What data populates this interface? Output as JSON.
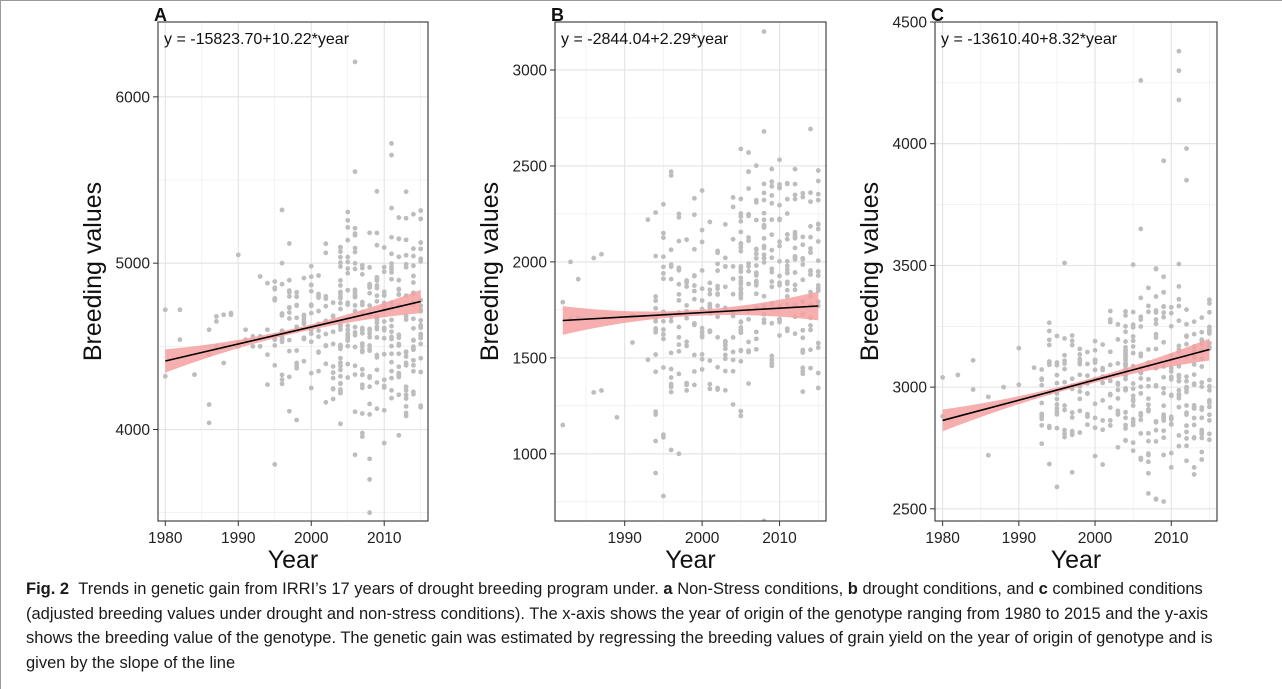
{
  "figure": {
    "label": "Fig. 2",
    "caption_segments": [
      {
        "text": "Trends in genetic gain from IRRI’s 17 years of drought breeding program under. ",
        "bold": false
      },
      {
        "text": "a",
        "bold": true
      },
      {
        "text": " Non-Stress conditions, ",
        "bold": false
      },
      {
        "text": "b",
        "bold": true
      },
      {
        "text": " drought conditions, and ",
        "bold": false
      },
      {
        "text": "c",
        "bold": true
      },
      {
        "text": " combined conditions (adjusted breeding values under drought and non-stress conditions). The x-axis shows the year of origin of the genotype ranging from 1980 to 2015 and the y-axis shows the breeding value of the genotype. The genetic gain was estimated by regressing the breeding values of grain yield on the year of origin of genotype and is given by the slope of the line",
        "bold": false
      }
    ]
  },
  "colors": {
    "points": "#bdbdbd",
    "ribbon": "#f4a0a0",
    "line": "#000000",
    "grid": "#ebebeb",
    "panel_border": "#333333"
  },
  "chart_data": [
    {
      "type": "scatter",
      "panel_label": "A",
      "equation": "y = -15823.70+10.22*year",
      "xlabel": "Year",
      "ylabel": "Breeding values",
      "xlim": [
        1979,
        2016
      ],
      "ylim": [
        3450,
        6450
      ],
      "xticks": [
        1980,
        1990,
        2000,
        2010
      ],
      "yticks": [
        4000,
        5000,
        6000
      ],
      "regression": {
        "intercept": -15823.7,
        "slope": 10.22,
        "x_range": [
          1980,
          2015
        ],
        "ci_half_width_ends": 70,
        "ci_half_width_mid": 15
      },
      "scatter_summary": [
        {
          "x": 1980,
          "y": [
            4720,
            4320
          ]
        },
        {
          "x": 1982,
          "y": [
            4720,
            4540
          ]
        },
        {
          "x": 1984,
          "y": [
            4330
          ]
        },
        {
          "x": 1986,
          "y": [
            4040,
            4150,
            4600,
            4450
          ]
        },
        {
          "x": 1987,
          "y": [
            4500,
            4650,
            4680
          ]
        },
        {
          "x": 1988,
          "y": [
            4400,
            4690,
            4500
          ]
        },
        {
          "x": 1989,
          "y": [
            4700,
            4690
          ]
        },
        {
          "x": 1990,
          "y": [
            5050,
            4500,
            4520
          ]
        },
        {
          "x": 1991,
          "y": [
            4540,
            4600
          ]
        },
        {
          "x": 1992,
          "y": [
            4500,
            4560
          ]
        },
        {
          "x": 1993,
          "y": [
            4560,
            4920,
            4500
          ]
        },
        {
          "x": 1994,
          "y": [
            4270,
            4880,
            4600,
            4450
          ]
        },
        {
          "x": 1995,
          "y": [
            3790,
            4560,
            4540
          ]
        },
        {
          "x": 1996,
          "y": [
            5320,
            4550,
            4300,
            5000
          ]
        },
        {
          "x": 1997,
          "y": [
            4110,
            4800
          ]
        },
        {
          "x": 1998,
          "y": [
            4800,
            4400
          ]
        },
        {
          "x": 2000,
          "y": [
            4870,
            4250,
            4600
          ]
        },
        {
          "x": 2006,
          "y": [
            6210,
            5550
          ]
        },
        {
          "x": 2008,
          "y": [
            3500,
            3700
          ]
        },
        {
          "x": 2011,
          "y": [
            5720,
            5650
          ]
        }
      ],
      "y_density": [
        {
          "x_from": 1995,
          "x_to": 2004,
          "y_lo": 4150,
          "y_hi": 5100,
          "n": 11
        },
        {
          "x_from": 2004,
          "x_to": 2015,
          "y_lo": 3950,
          "y_hi": 5350,
          "n": 22
        }
      ]
    },
    {
      "type": "scatter",
      "panel_label": "B",
      "equation": "y = -2844.04+2.29*year",
      "xlabel": "Year",
      "ylabel": "Breeding values",
      "xlim": [
        1981,
        2016
      ],
      "ylim": [
        650,
        3250
      ],
      "xticks": [
        1990,
        2000,
        2010
      ],
      "yticks": [
        1000,
        1500,
        2000,
        2500,
        3000
      ],
      "regression": {
        "intercept": -2844.04,
        "slope": 2.29,
        "x_range": [
          1982,
          2015
        ],
        "ci_half_width_ends": 75,
        "ci_half_width_mid": 15
      },
      "scatter_summary": [
        {
          "x": 1982,
          "y": [
            1150,
            1790
          ]
        },
        {
          "x": 1983,
          "y": [
            2000,
            1700
          ]
        },
        {
          "x": 1984,
          "y": [
            1910,
            1710
          ]
        },
        {
          "x": 1986,
          "y": [
            2020,
            1320
          ]
        },
        {
          "x": 1987,
          "y": [
            2040,
            1330
          ]
        },
        {
          "x": 1989,
          "y": [
            1190
          ]
        },
        {
          "x": 1991,
          "y": [
            1720,
            1580
          ]
        },
        {
          "x": 1993,
          "y": [
            2220,
            1490
          ]
        },
        {
          "x": 1994,
          "y": [
            900,
            1220
          ]
        },
        {
          "x": 1995,
          "y": [
            780,
            1100,
            2300
          ]
        },
        {
          "x": 1996,
          "y": [
            1020,
            2470
          ]
        },
        {
          "x": 1997,
          "y": [
            1000,
            2250
          ]
        },
        {
          "x": 2008,
          "y": [
            650,
            3200
          ]
        }
      ],
      "y_density": [
        {
          "x_from": 1994,
          "x_to": 2005,
          "y_lo": 1150,
          "y_hi": 2350,
          "n": 14
        },
        {
          "x_from": 2005,
          "x_to": 2015,
          "y_lo": 1250,
          "y_hi": 2600,
          "n": 20
        }
      ]
    },
    {
      "type": "scatter",
      "panel_label": "C",
      "equation": "y = -13610.40+8.32*year",
      "xlabel": "Year",
      "ylabel": "Breeding values",
      "xlim": [
        1979,
        2016
      ],
      "ylim": [
        2450,
        4500
      ],
      "xticks": [
        1980,
        1990,
        2000,
        2010
      ],
      "yticks": [
        2500,
        3000,
        3500,
        4000,
        4500
      ],
      "regression": {
        "intercept": -13610.4,
        "slope": 8.32,
        "x_range": [
          1980,
          2015
        ],
        "ci_half_width_ends": 45,
        "ci_half_width_mid": 10
      },
      "scatter_summary": [
        {
          "x": 1980,
          "y": [
            3040,
            2880
          ]
        },
        {
          "x": 1982,
          "y": [
            3050
          ]
        },
        {
          "x": 1984,
          "y": [
            3110,
            2990
          ]
        },
        {
          "x": 1986,
          "y": [
            2720,
            2960
          ]
        },
        {
          "x": 1988,
          "y": [
            3000,
            2930
          ]
        },
        {
          "x": 1990,
          "y": [
            3160,
            3010
          ]
        },
        {
          "x": 1992,
          "y": [
            3080,
            2960
          ]
        },
        {
          "x": 1995,
          "y": [
            2590,
            3210
          ]
        },
        {
          "x": 1996,
          "y": [
            2440,
            3510
          ]
        },
        {
          "x": 1997,
          "y": [
            2410,
            2650
          ]
        },
        {
          "x": 2006,
          "y": [
            4260,
            3650
          ]
        },
        {
          "x": 2011,
          "y": [
            4380,
            4300,
            4180
          ]
        },
        {
          "x": 2012,
          "y": [
            3980,
            3850
          ]
        },
        {
          "x": 2009,
          "y": [
            3930,
            2530
          ]
        }
      ],
      "y_density": [
        {
          "x_from": 1993,
          "x_to": 2004,
          "y_lo": 2700,
          "y_hi": 3300,
          "n": 11
        },
        {
          "x_from": 2004,
          "x_to": 2015,
          "y_lo": 2600,
          "y_hi": 3500,
          "n": 20
        }
      ]
    }
  ]
}
